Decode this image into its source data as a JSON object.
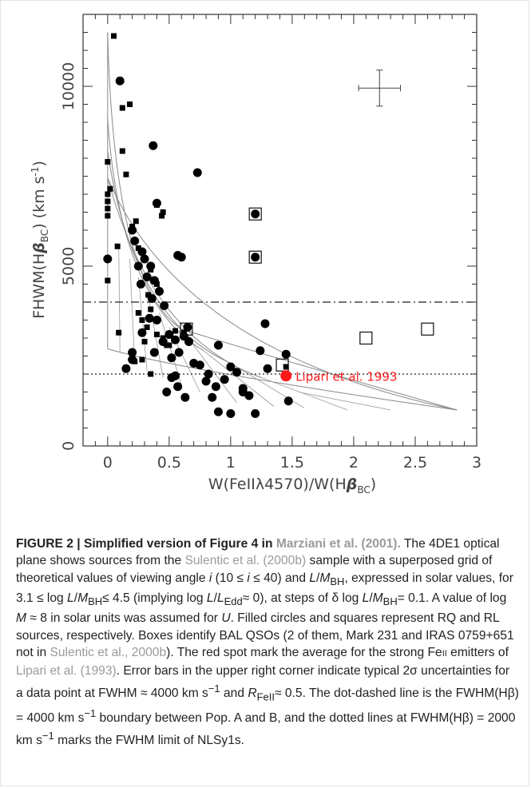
{
  "chart_data": {
    "type": "scatter",
    "xlabel": "W(FeIIλ4570)/W(Hβ_BC)",
    "ylabel": "FHWM(Hβ_BC) (km s⁻¹)",
    "xlim": [
      -0.2,
      3.0
    ],
    "ylim": [
      0,
      12000
    ],
    "x_ticks": [
      "0",
      "0.5",
      "1",
      "1.5",
      "2",
      "2.5",
      "3"
    ],
    "y_ticks": [
      "0",
      "5000",
      "10000"
    ],
    "reference_lines": [
      {
        "style": "dot-dashed",
        "y": 4000
      },
      {
        "style": "dotted",
        "y": 2000
      }
    ],
    "annotation": {
      "text": "Lipari et al. 1993",
      "x": 1.45,
      "y": 1950,
      "color": "#ff1a1a"
    },
    "error_bar": {
      "x": 2.21,
      "y": 9950,
      "dx": 0.17,
      "dy": 500
    },
    "series": [
      {
        "marker": "filled-square",
        "points": [
          [
            0.05,
            11400
          ],
          [
            0.0,
            7900
          ],
          [
            0.02,
            7150
          ],
          [
            0.0,
            7000
          ],
          [
            0.0,
            6800
          ],
          [
            0.0,
            6600
          ],
          [
            0.0,
            6400
          ],
          [
            0.12,
            9400
          ],
          [
            0.18,
            9500
          ],
          [
            0.12,
            8200
          ],
          [
            0.15,
            7550
          ],
          [
            0.23,
            6250
          ],
          [
            0.08,
            5550
          ],
          [
            0.2,
            6100
          ],
          [
            0.4,
            6700
          ],
          [
            0.45,
            6500
          ],
          [
            0.44,
            6400
          ],
          [
            0.0,
            4600
          ],
          [
            0.09,
            3150
          ],
          [
            0.25,
            5500
          ],
          [
            0.3,
            5200
          ],
          [
            0.35,
            4900
          ],
          [
            0.4,
            4500
          ],
          [
            0.33,
            4200
          ],
          [
            0.35,
            3800
          ],
          [
            0.25,
            3700
          ],
          [
            0.28,
            3500
          ],
          [
            0.32,
            3300
          ],
          [
            0.4,
            3100
          ],
          [
            0.3,
            2900
          ],
          [
            0.45,
            3000
          ],
          [
            0.48,
            2800
          ],
          [
            0.2,
            2450
          ],
          [
            0.22,
            2350
          ],
          [
            0.28,
            2400
          ],
          [
            0.5,
            2800
          ],
          [
            0.55,
            3200
          ],
          [
            0.62,
            3150
          ],
          [
            0.35,
            2000
          ],
          [
            1.45,
            2200
          ]
        ]
      },
      {
        "marker": "filled-circle",
        "points": [
          [
            0.1,
            10150
          ],
          [
            0.37,
            8350
          ],
          [
            0.73,
            7600
          ],
          [
            0.4,
            6750
          ],
          [
            0.0,
            5200
          ],
          [
            0.57,
            5300
          ],
          [
            0.6,
            5250
          ],
          [
            0.2,
            6000
          ],
          [
            0.22,
            5700
          ],
          [
            0.28,
            5400
          ],
          [
            0.3,
            5200
          ],
          [
            0.35,
            5000
          ],
          [
            0.25,
            5000
          ],
          [
            0.38,
            4600
          ],
          [
            0.42,
            4300
          ],
          [
            0.32,
            4700
          ],
          [
            0.27,
            4500
          ],
          [
            0.36,
            4100
          ],
          [
            0.46,
            3900
          ],
          [
            0.4,
            3500
          ],
          [
            0.34,
            3550
          ],
          [
            0.28,
            3150
          ],
          [
            0.38,
            2600
          ],
          [
            0.45,
            2900
          ],
          [
            0.5,
            3100
          ],
          [
            0.52,
            2450
          ],
          [
            0.55,
            2950
          ],
          [
            0.58,
            2600
          ],
          [
            0.62,
            3050
          ],
          [
            0.66,
            2900
          ],
          [
            0.2,
            2400
          ],
          [
            0.15,
            2150
          ],
          [
            0.2,
            2600
          ],
          [
            0.48,
            1500
          ],
          [
            0.52,
            1900
          ],
          [
            0.55,
            1950
          ],
          [
            0.57,
            1650
          ],
          [
            0.63,
            1350
          ],
          [
            0.7,
            2300
          ],
          [
            0.75,
            2250
          ],
          [
            0.8,
            1800
          ],
          [
            0.82,
            2000
          ],
          [
            0.88,
            1650
          ],
          [
            0.9,
            2800
          ],
          [
            0.95,
            1850
          ],
          [
            1.0,
            2200
          ],
          [
            1.05,
            2050
          ],
          [
            1.1,
            1500
          ],
          [
            1.15,
            1400
          ],
          [
            0.85,
            1350
          ],
          [
            0.9,
            950
          ],
          [
            1.0,
            900
          ],
          [
            1.1,
            1600
          ],
          [
            1.2,
            900
          ],
          [
            1.3,
            2150
          ],
          [
            1.24,
            2650
          ],
          [
            1.28,
            3400
          ],
          [
            1.45,
            2550
          ],
          [
            1.47,
            1250
          ],
          [
            1.2,
            6450
          ],
          [
            1.2,
            5250
          ],
          [
            0.65,
            3300
          ]
        ]
      },
      {
        "marker": "open-square",
        "points": [
          [
            1.2,
            6450
          ],
          [
            1.2,
            5250
          ],
          [
            0.64,
            3250
          ],
          [
            1.42,
            2250
          ],
          [
            2.1,
            3000
          ],
          [
            2.6,
            3250
          ]
        ]
      },
      {
        "marker": "red-filled-circle",
        "points": [
          [
            1.45,
            1950
          ]
        ]
      }
    ]
  },
  "caption": {
    "title": "FIGURE 2 | Simplified version of Figure 4 in ",
    "title_ref": "Marziani et al. (2001).",
    "t1": " The 4DE1 optical plane shows sources from the ",
    "ref1": "Sulentic et al. (2000b)",
    "t2": " sample with a superposed grid of theoretical values of viewing angle ",
    "t3": " (10 ≤ ",
    "t4": " ≤ 40) and ",
    "t5": "/",
    "t6": "BH",
    "t7": ", expressed in solar values, for 3.1 ≤ log ",
    "t8": "/",
    "t9": "BH",
    "t10": "≤ 4.5 (implying log ",
    "t11": "/",
    "t12": "Edd",
    "t13": "≈ 0), at steps of δ log ",
    "t14": "/",
    "t15": "BH",
    "t16": "= 0.1. A value of log ",
    "t17": " ≈ 8 in solar units was assumed for ",
    "t18": ". Filled circles and squares represent RQ and RL sources, respectively. Boxes identify BAL QSOs (2 of them, Mark 231 and IRAS 0759+651 not in ",
    "ref2": "Sulentic et al., 2000b",
    "t19": "). The red spot mark the average for the strong Fe",
    "t20": "II",
    "t21": " emitters of ",
    "ref3": "Lipari et al. (1993)",
    "t22": ". Error bars in the upper right corner indicate typical 2σ uncertainties for a data point at FWHM ≈ 4000 km s",
    "t23": "−1",
    "t24": " and ",
    "t25": "FeII",
    "t26": "≈ 0.5. The dot-dashed line is the FWHM(Hβ) = 4000 km s",
    "t27": "−1",
    "t28": " boundary between Pop. A and B, and the dotted lines at FWHM(Hβ) = 2000 km s",
    "t29": "−1",
    "t30": " marks the FWHM limit of NLSy1s.",
    "v_i": "i",
    "v_L": "L",
    "v_M": "M",
    "v_R": "R",
    "v_U": "U"
  }
}
